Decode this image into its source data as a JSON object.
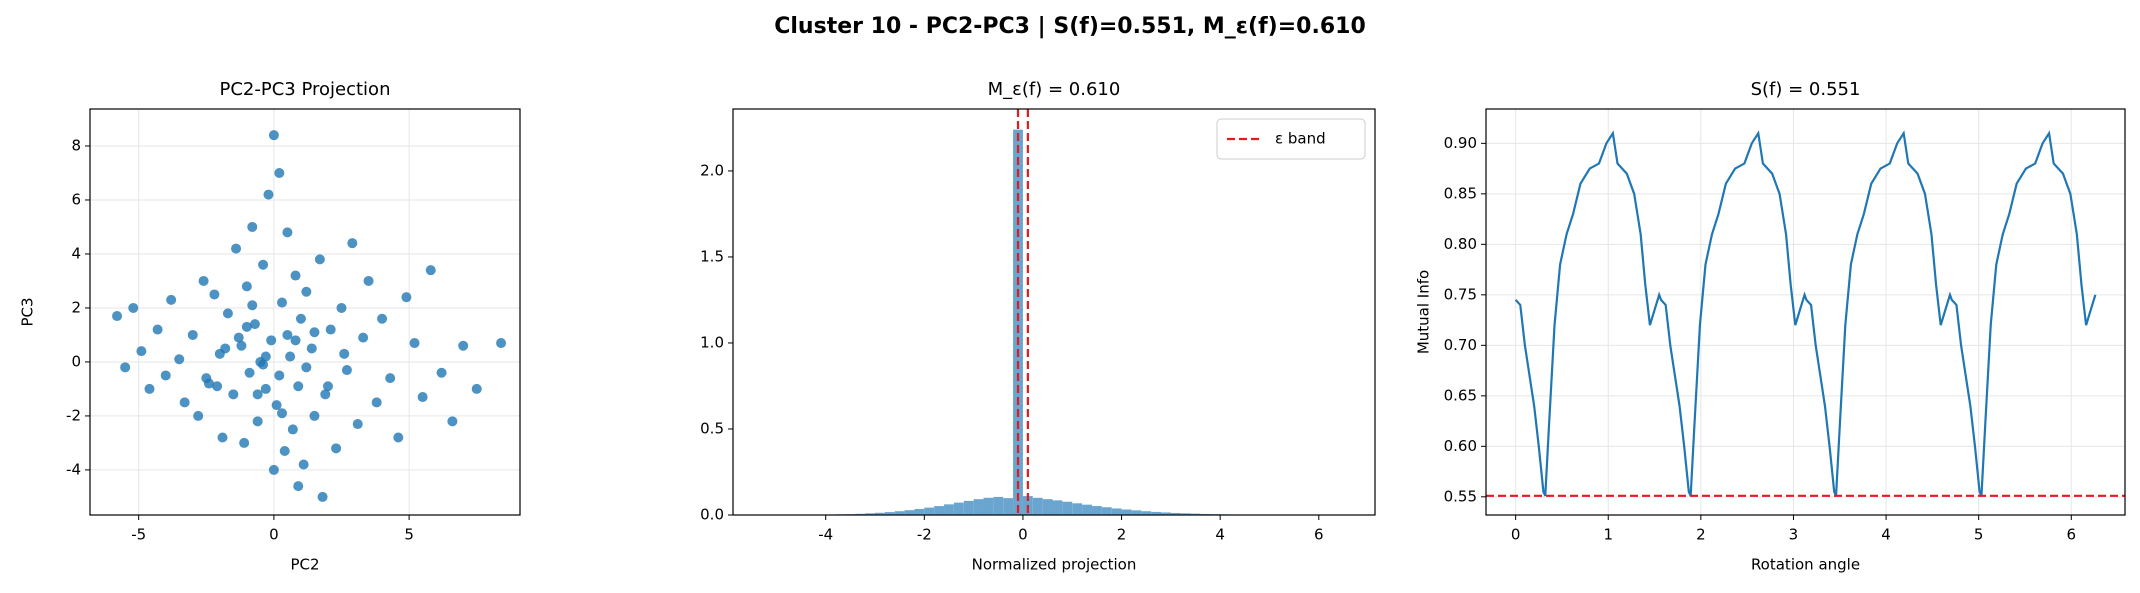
{
  "title": "Cluster 10 - PC2-PC3 | S(f)=0.551, M_ε(f)=0.610",
  "chart_data": [
    {
      "type": "scatter",
      "title": "PC2-PC3 Projection",
      "x_label": "PC2",
      "y_label": "PC3",
      "color": "#1f77b4",
      "grid": true,
      "xlim": [
        -6.8,
        9.1
      ],
      "ylim": [
        -5.67,
        9.37
      ],
      "xticks": [
        -5,
        0,
        5
      ],
      "yticks": [
        -4,
        -2,
        0,
        2,
        4,
        6,
        8
      ],
      "x": [
        -5.8,
        -5.5,
        -5.2,
        -4.9,
        -4.6,
        -4.3,
        -4.0,
        -3.8,
        -3.5,
        -3.3,
        -3.0,
        -2.8,
        -2.6,
        -2.4,
        -2.2,
        -2.0,
        -1.9,
        -1.7,
        -1.5,
        -1.4,
        -1.2,
        -1.1,
        -1.0,
        -0.9,
        -0.8,
        -0.7,
        -0.6,
        -0.5,
        -0.4,
        -0.3,
        -0.2,
        -0.1,
        0,
        0.1,
        0.2,
        0.3,
        0.4,
        0.5,
        0.6,
        0.7,
        0.8,
        0.9,
        1.0,
        1.1,
        1.2,
        1.4,
        1.5,
        1.7,
        1.9,
        2.1,
        2.3,
        2.5,
        2.7,
        2.9,
        3.1,
        3.3,
        3.5,
        3.8,
        4.0,
        4.3,
        4.6,
        4.9,
        5.2,
        5.5,
        5.8,
        6.2,
        6.6,
        7.0,
        7.5,
        8.4,
        -0.3,
        0.2,
        0.5,
        -0.6,
        1.2,
        -1.8,
        0.8,
        -2.5,
        2.0,
        -1.0,
        0.0,
        1.5,
        -0.4,
        0.3,
        -1.3,
        2.6,
        -2.1,
        0.9,
        -0.8,
        1.8
      ],
      "values": [
        1.7,
        -0.2,
        2.0,
        0.4,
        -1.0,
        1.2,
        -0.5,
        2.3,
        0.1,
        -1.5,
        1.0,
        -2.0,
        3.0,
        -0.8,
        2.5,
        0.3,
        -2.8,
        1.8,
        -1.2,
        4.2,
        0.6,
        -3.0,
        2.8,
        -0.4,
        5.0,
        1.4,
        -2.2,
        0.0,
        3.6,
        -1.0,
        6.2,
        0.8,
        8.4,
        -1.6,
        7.0,
        2.2,
        -3.3,
        4.8,
        0.2,
        -2.5,
        3.2,
        -0.9,
        1.6,
        -3.8,
        2.6,
        0.5,
        -2.0,
        3.8,
        -1.2,
        1.2,
        -3.2,
        2.0,
        -0.3,
        4.4,
        -2.3,
        0.9,
        3.0,
        -1.5,
        1.6,
        -0.6,
        -2.8,
        2.4,
        0.7,
        -1.3,
        3.4,
        -0.4,
        -2.2,
        0.6,
        -1.0,
        0.7,
        0.2,
        -0.5,
        1.0,
        -1.2,
        -0.2,
        0.5,
        0.8,
        -0.6,
        -0.9,
        1.3,
        -4.0,
        1.1,
        -0.1,
        -1.9,
        0.9,
        0.3,
        -0.9,
        -4.6,
        2.1,
        -5.0
      ]
    },
    {
      "type": "histogram",
      "title": "M_ε(f) = 0.610",
      "x_label": "Normalized projection",
      "color": "#6aa5d0",
      "grid": false,
      "xlim": [
        -5.88,
        7.14
      ],
      "ylim": [
        0,
        2.36
      ],
      "xticks": [
        -4,
        -2,
        0,
        2,
        4,
        6
      ],
      "yticks": [
        {
          "value": 0,
          "label": "0.0"
        },
        0.5,
        {
          "value": 1,
          "label": "1.0"
        },
        1.5,
        {
          "value": 2,
          "label": "2.0"
        }
      ],
      "bins": [
        -5.4,
        -5.2,
        -5.0,
        -4.8,
        -4.6,
        -4.4,
        -4.2,
        -4.0,
        -3.8,
        -3.6,
        -3.4,
        -3.2,
        -3.0,
        -2.8,
        -2.6,
        -2.4,
        -2.2,
        -2.0,
        -1.8,
        -1.6,
        -1.4,
        -1.2,
        -1.0,
        -0.8,
        -0.6,
        -0.4,
        -0.2,
        0.0,
        0.2,
        0.4,
        0.6,
        0.8,
        1.0,
        1.2,
        1.4,
        1.6,
        1.8,
        2.0,
        2.2,
        2.4,
        2.6,
        2.8,
        3.0,
        3.2,
        3.4,
        3.6,
        3.8,
        4.0,
        4.2,
        4.4,
        4.6,
        4.8,
        5.0,
        5.2,
        5.4,
        5.6,
        5.8,
        6.0,
        6.2,
        6.4,
        6.6
      ],
      "values": [
        0,
        0,
        0,
        0,
        0,
        0,
        0.002,
        0.003,
        0.004,
        0.005,
        0.007,
        0.01,
        0.013,
        0.017,
        0.022,
        0.028,
        0.035,
        0.043,
        0.052,
        0.062,
        0.072,
        0.082,
        0.092,
        0.1,
        0.105,
        0.098,
        2.24,
        0.11,
        0.1,
        0.092,
        0.085,
        0.077,
        0.068,
        0.06,
        0.052,
        0.045,
        0.038,
        0.032,
        0.027,
        0.022,
        0.018,
        0.015,
        0.012,
        0.01,
        0.008,
        0.006,
        0.005,
        0.004,
        0.003,
        0.002,
        0.002,
        0.001,
        0.001,
        0.001,
        0.001,
        0,
        0,
        0,
        0,
        0
      ],
      "reference_lines": [
        {
          "name": "ε band",
          "axis": "x",
          "color": "#e41a1c",
          "values": [
            -0.1,
            0.1
          ]
        }
      ],
      "legend": "upper right"
    },
    {
      "type": "line",
      "title": "S(f) = 0.551",
      "x_label": "Rotation angle",
      "y_label": "Mutual Info",
      "color": "#1f77b4",
      "grid": true,
      "xlim": [
        -0.32,
        6.58
      ],
      "ylim": [
        0.532,
        0.934
      ],
      "xticks": [
        0,
        1,
        2,
        3,
        4,
        5,
        6
      ],
      "yticks": [
        0.55,
        {
          "value": 0.6,
          "label": "0.60"
        },
        0.65,
        {
          "value": 0.7,
          "label": "0.70"
        },
        0.75,
        {
          "value": 0.8,
          "label": "0.80"
        },
        0.85,
        {
          "value": 0.9,
          "label": "0.90"
        }
      ],
      "x": [
        0,
        0.05,
        0.1,
        0.15,
        0.2,
        0.25,
        0.3,
        0.32,
        0.36,
        0.42,
        0.48,
        0.55,
        0.62,
        0.7,
        0.8,
        0.9,
        0.98,
        1.05,
        1.1,
        1.2,
        1.28,
        1.35,
        1.4,
        1.45,
        1.5,
        1.55,
        1.57,
        1.62,
        1.67,
        1.72,
        1.77,
        1.82,
        1.87,
        1.89,
        1.93,
        1.99,
        2.05,
        2.12,
        2.19,
        2.27,
        2.37,
        2.47,
        2.55,
        2.62,
        2.67,
        2.77,
        2.85,
        2.92,
        2.97,
        3.02,
        3.07,
        3.12,
        3.14,
        3.19,
        3.24,
        3.29,
        3.34,
        3.39,
        3.44,
        3.46,
        3.5,
        3.56,
        3.62,
        3.69,
        3.76,
        3.84,
        3.94,
        4.04,
        4.12,
        4.19,
        4.24,
        4.34,
        4.42,
        4.49,
        4.54,
        4.59,
        4.64,
        4.69,
        4.71,
        4.76,
        4.81,
        4.86,
        4.91,
        4.96,
        5.01,
        5.03,
        5.07,
        5.13,
        5.19,
        5.26,
        5.33,
        5.41,
        5.51,
        5.61,
        5.69,
        5.76,
        5.81,
        5.91,
        5.99,
        6.06,
        6.11,
        6.16,
        6.21,
        6.26
      ],
      "values": [
        0.745,
        0.74,
        0.7,
        0.67,
        0.64,
        0.6,
        0.555,
        0.551,
        0.62,
        0.72,
        0.78,
        0.81,
        0.83,
        0.86,
        0.875,
        0.88,
        0.9,
        0.91,
        0.88,
        0.87,
        0.85,
        0.81,
        0.76,
        0.72,
        0.735,
        0.75,
        0.745,
        0.74,
        0.7,
        0.67,
        0.64,
        0.6,
        0.555,
        0.551,
        0.62,
        0.72,
        0.78,
        0.81,
        0.83,
        0.86,
        0.875,
        0.88,
        0.9,
        0.91,
        0.88,
        0.87,
        0.85,
        0.81,
        0.76,
        0.72,
        0.735,
        0.75,
        0.745,
        0.74,
        0.7,
        0.67,
        0.64,
        0.6,
        0.555,
        0.551,
        0.62,
        0.72,
        0.78,
        0.81,
        0.83,
        0.86,
        0.875,
        0.88,
        0.9,
        0.91,
        0.88,
        0.87,
        0.85,
        0.81,
        0.76,
        0.72,
        0.735,
        0.75,
        0.745,
        0.74,
        0.7,
        0.67,
        0.64,
        0.6,
        0.555,
        0.551,
        0.62,
        0.72,
        0.78,
        0.81,
        0.83,
        0.86,
        0.875,
        0.88,
        0.9,
        0.91,
        0.88,
        0.87,
        0.85,
        0.81,
        0.76,
        0.72,
        0.735,
        0.75
      ],
      "reference_lines": [
        {
          "axis": "y",
          "color": "#e41a1c",
          "values": [
            0.551
          ]
        }
      ]
    }
  ]
}
